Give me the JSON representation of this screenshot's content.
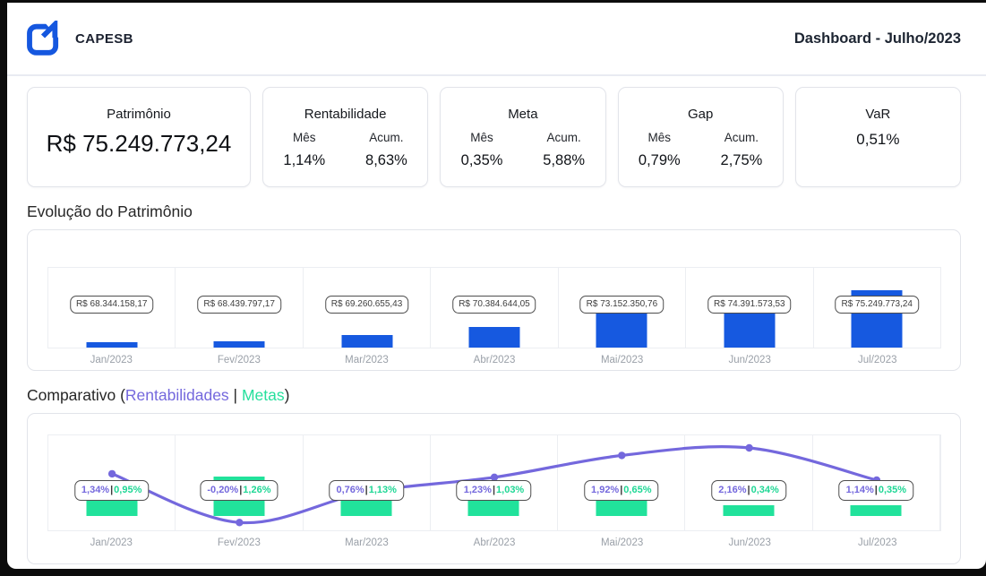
{
  "header": {
    "brand": "CAPESB",
    "title": "Dashboard - Julho/2023",
    "logo_color": "#1557df"
  },
  "kpis": {
    "patrimonio": {
      "title": "Patrimônio",
      "value": "R$ 75.249.773,24"
    },
    "rentabilidade": {
      "title": "Rentabilidade",
      "mes_label": "Mês",
      "acum_label": "Acum.",
      "mes": "1,14%",
      "acum": "8,63%"
    },
    "meta": {
      "title": "Meta",
      "mes_label": "Mês",
      "acum_label": "Acum.",
      "mes": "0,35%",
      "acum": "5,88%"
    },
    "gap": {
      "title": "Gap",
      "mes_label": "Mês",
      "acum_label": "Acum.",
      "mes": "0,79%",
      "acum": "2,75%"
    },
    "var": {
      "title": "VaR",
      "value": "0,51%"
    }
  },
  "sections": {
    "evolucao": {
      "title": "Evolução do Patrimônio"
    },
    "comparativo": {
      "prefix": "Comparativo (",
      "rentabilidades": "Rentabilidades",
      "separator": " | ",
      "metas": "Metas",
      "suffix": ")"
    }
  },
  "colors": {
    "bar_blue": "#1659e0",
    "line_purple": "#7468dd",
    "bar_green": "#21e29b"
  },
  "chart_data": [
    {
      "type": "bar",
      "title": "Evolução do Patrimônio",
      "categories": [
        "Jan/2023",
        "Fev/2023",
        "Mar/2023",
        "Abr/2023",
        "Mai/2023",
        "Jun/2023",
        "Jul/2023"
      ],
      "values": [
        68344158.17,
        68439797.17,
        69260655.43,
        70384644.05,
        73152350.76,
        74391573.53,
        75249773.24
      ],
      "value_labels": [
        "R$ 68.344.158,17",
        "R$ 68.439.797,17",
        "R$ 69.260.655,43",
        "R$ 70.384.644,05",
        "R$ 73.152.350,76",
        "R$ 74.391.573,53",
        "R$ 75.249.773,24"
      ],
      "bar_color": "#1659e0",
      "ylim": [
        67650000,
        78130000
      ],
      "xlabel": "",
      "ylabel": "",
      "grid": "column-separators",
      "legend": "none"
    },
    {
      "type": "composed",
      "title": "Comparativo (Rentabilidades | Metas)",
      "categories": [
        "Jan/2023",
        "Fev/2023",
        "Mar/2023",
        "Abr/2023",
        "Mai/2023",
        "Jun/2023",
        "Jul/2023"
      ],
      "series": [
        {
          "name": "Rentabilidades",
          "type": "line",
          "color": "#7468dd",
          "values": [
            1.34,
            -0.2,
            0.76,
            1.23,
            1.92,
            2.16,
            1.14
          ],
          "labels": [
            "1,34%",
            "-0,20%",
            "0,76%",
            "1,23%",
            "1,92%",
            "2,16%",
            "1,14%"
          ]
        },
        {
          "name": "Metas",
          "type": "bar",
          "color": "#21e29b",
          "values": [
            0.95,
            1.26,
            1.13,
            1.03,
            0.65,
            0.34,
            0.35
          ],
          "labels": [
            "0,95%",
            "1,26%",
            "1,13%",
            "1,03%",
            "0,65%",
            "0,34%",
            "0,35%"
          ]
        }
      ],
      "label_separator": "|",
      "ylim": [
        -0.445,
        2.555
      ],
      "grid": "column-separators",
      "legend": "inline-in-title"
    }
  ]
}
